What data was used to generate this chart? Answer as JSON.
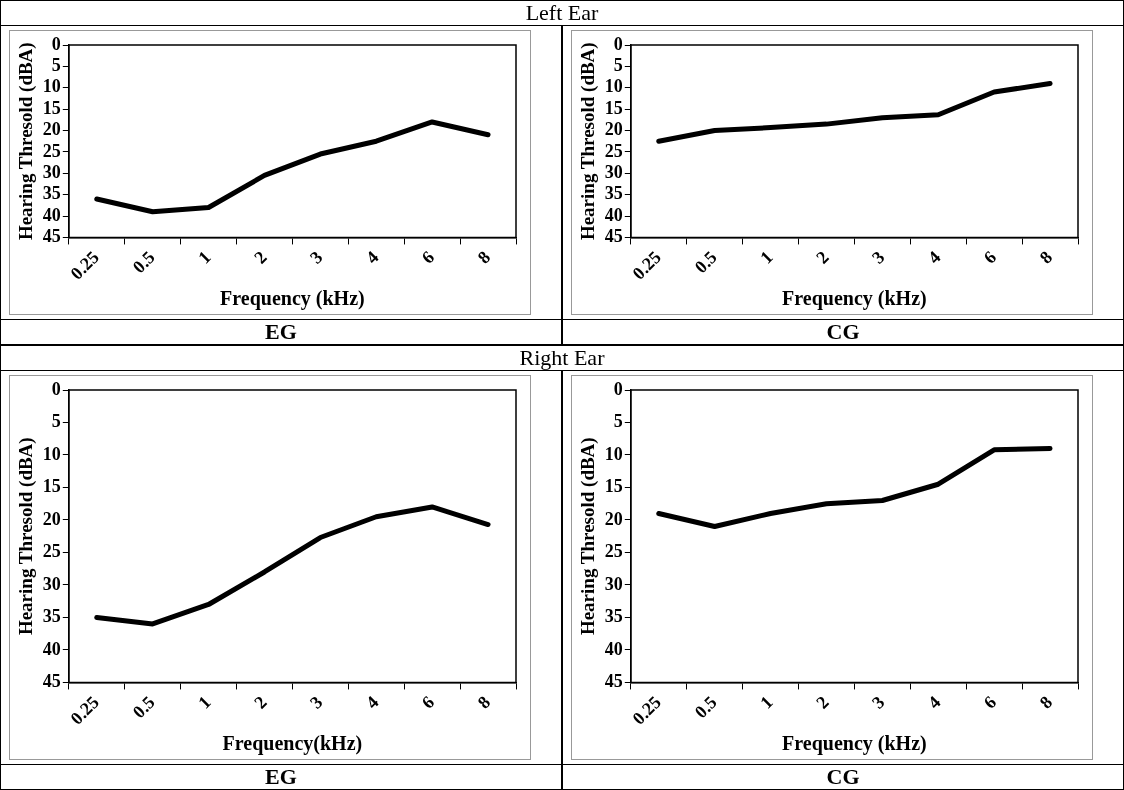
{
  "chart_data": [
    {
      "type": "line",
      "title": "Left Ear",
      "subtitle": "EG",
      "xlabel": "Frequency (kHz)",
      "ylabel": "Hearing Thresold (dBA)",
      "categories": [
        "0.25",
        "0.5",
        "1",
        "2",
        "3",
        "4",
        "6",
        "8"
      ],
      "series": [
        {
          "color": "#000000",
          "values": [
            36,
            39,
            38,
            30.5,
            25.5,
            22.5,
            18,
            21
          ]
        }
      ],
      "ylim": [
        45,
        0
      ],
      "yticks": [
        0,
        5,
        10,
        15,
        20,
        25,
        30,
        35,
        40,
        45
      ],
      "marker": "none",
      "line_style": "solid",
      "legend": false,
      "grid": false
    },
    {
      "type": "line",
      "subtitle": "CG",
      "xlabel": "Frequency (kHz)",
      "ylabel": "Hearing Thresold (dBA)",
      "categories": [
        "0.25",
        "0.5",
        "1",
        "2",
        "3",
        "4",
        "6",
        "8"
      ],
      "series": [
        {
          "color": "#000000",
          "values": [
            22.5,
            20,
            19.3,
            18.5,
            17,
            16.3,
            11,
            9
          ]
        }
      ],
      "ylim": [
        45,
        0
      ],
      "yticks": [
        0,
        5,
        10,
        15,
        20,
        25,
        30,
        35,
        40,
        45
      ],
      "marker": "none",
      "line_style": "solid",
      "legend": false,
      "grid": false
    },
    {
      "type": "line",
      "title": "Right Ear",
      "subtitle": "EG",
      "xlabel": "Frequency(kHz)",
      "ylabel": "Hearing Thresold (dBA)",
      "categories": [
        "0.25",
        "0.5",
        "1",
        "2",
        "3",
        "4",
        "6",
        "8"
      ],
      "series": [
        {
          "color": "#000000",
          "values": [
            35,
            36,
            33,
            28,
            22.7,
            19.5,
            18,
            20.7
          ]
        }
      ],
      "ylim": [
        45,
        0
      ],
      "yticks": [
        0,
        5,
        10,
        15,
        20,
        25,
        30,
        35,
        40,
        45
      ],
      "marker": "none",
      "line_style": "solid",
      "legend": false,
      "grid": false
    },
    {
      "type": "line",
      "subtitle": "CG",
      "xlabel": "Frequency (kHz)",
      "ylabel": "Hearing Thresold (dBA)",
      "categories": [
        "0.25",
        "0.5",
        "1",
        "2",
        "3",
        "4",
        "6",
        "8"
      ],
      "series": [
        {
          "color": "#000000",
          "values": [
            19,
            21,
            19,
            17.5,
            17,
            14.5,
            9.2,
            9
          ]
        }
      ],
      "ylim": [
        45,
        0
      ],
      "yticks": [
        0,
        5,
        10,
        15,
        20,
        25,
        30,
        35,
        40,
        45
      ],
      "marker": "none",
      "line_style": "solid",
      "legend": false,
      "grid": false
    }
  ]
}
